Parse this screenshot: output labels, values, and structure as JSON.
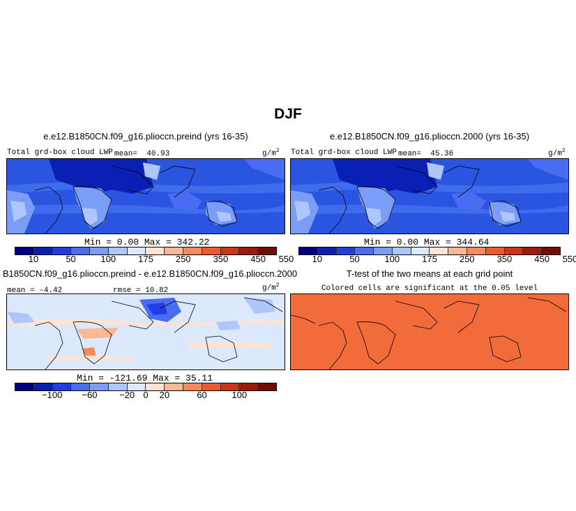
{
  "figure_title": "DJF",
  "panels": {
    "p1": {
      "title": "e.e12.B1850CN.f09_g16.plioccn.preind (yrs 16-35)",
      "left_label": "Total grd-box cloud LWP",
      "mean_label": "mean=",
      "mean_value": "40.93",
      "units": "g/m",
      "units_sup": "2",
      "minmax": "Min =    0.00 Max =  342.22"
    },
    "p2": {
      "title": "e.e12.B1850CN.f09_g16.plioccn.2000 (yrs 16-35)",
      "left_label": "Total grd-box cloud LWP",
      "mean_label": "mean=",
      "mean_value": "45.36",
      "units": "g/m",
      "units_sup": "2",
      "minmax": "Min =    0.00 Max =  344.64"
    },
    "p3": {
      "title": "B1850CN.f09_g16.plioccn.preind - e.e12.B1850CN.f09_g16.plioccn.2000",
      "mean_text": "mean =  -4.42",
      "rmse_text": "rmse =  10.82",
      "units": "g/m",
      "units_sup": "2",
      "minmax": "Min = -121.69 Max =   35.11"
    },
    "p4": {
      "title": "T-test of the two means at each grid point",
      "subtitle": "Colored cells are significant at the 0.05 level"
    }
  },
  "colorbars": {
    "lwp": {
      "colors": [
        "#000080",
        "#0a1fb4",
        "#1f3ee6",
        "#4a6cf0",
        "#7b9cf7",
        "#adc6fb",
        "#dce9fc",
        "#fde3d4",
        "#fbb894",
        "#f78a5c",
        "#ee5a2c",
        "#cc3413",
        "#9e1b0a",
        "#730c08"
      ],
      "tick_labels": [
        "10",
        "50",
        "100",
        "175",
        "250",
        "350",
        "450",
        "550"
      ]
    },
    "diff": {
      "colors": [
        "#000080",
        "#0a1fb4",
        "#1f3ee6",
        "#4a6cf0",
        "#7b9cf7",
        "#adc6fb",
        "#dce9fc",
        "#fde3d4",
        "#fbb894",
        "#f78a5c",
        "#ee5a2c",
        "#cc3413",
        "#9e1b0a",
        "#730c08"
      ],
      "tick_labels": [
        "−100",
        "−60",
        "−20",
        "0",
        "20",
        "60",
        "100"
      ]
    }
  },
  "colors": {
    "ocean_lwp": "#2a55e0",
    "band_lwp": "#3f6cec",
    "land_dark": "#0a1fb4",
    "land_light": "#adc6fb",
    "land_orange": "#fbb894",
    "diff_bg": "#dce9fc",
    "ttest_fill": "#f26b3a"
  }
}
